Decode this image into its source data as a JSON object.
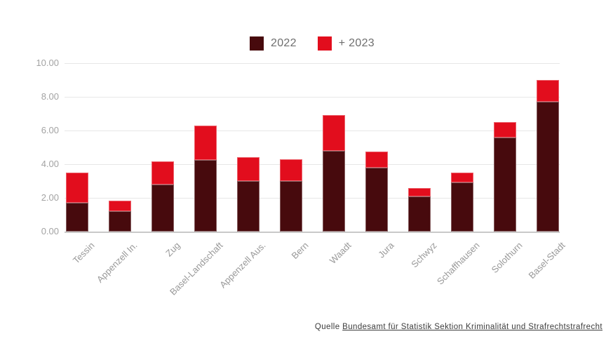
{
  "legend": {
    "series_2022_label": "2022",
    "series_2023_label": "+ 2023"
  },
  "source": {
    "prefix": "Quelle",
    "link_text": "Bundesamt für Statistik Sektion Kriminalität und Strafrechtstrafrecht"
  },
  "colors": {
    "series_2022": "#470a0d",
    "series_2023": "#e20d1d",
    "grid": "#e7e7e7",
    "axis_baseline": "#c9c9c9",
    "tick_text": "#a3a3a3",
    "legend_text": "#6e6e6e",
    "source_text": "#3c3c3c"
  },
  "chart_data": {
    "type": "bar",
    "stacked": true,
    "title": "",
    "xlabel": "",
    "ylabel": "",
    "categories": [
      "Tessin",
      "Appenzell In.",
      "Zug",
      "Basel-Landschaft",
      "Appenzell Aus.",
      "Bern",
      "Waadt",
      "Jura",
      "Schwyz",
      "Schaffhausen",
      "Solothurn",
      "Basel-Stadt"
    ],
    "series": [
      {
        "name": "2022",
        "color_key": "series_2022",
        "values": [
          1.7,
          1.2,
          2.8,
          4.25,
          3.0,
          3.0,
          4.8,
          3.8,
          2.1,
          2.9,
          5.6,
          7.7
        ]
      },
      {
        "name": "+ 2023",
        "color_key": "series_2023",
        "values": [
          1.8,
          0.65,
          1.35,
          2.05,
          1.4,
          1.3,
          2.1,
          0.95,
          0.5,
          0.6,
          0.9,
          1.3
        ]
      }
    ],
    "stack_totals": [
      3.5,
      1.85,
      4.15,
      6.3,
      4.4,
      4.3,
      6.9,
      4.75,
      2.6,
      3.5,
      6.5,
      9.0
    ],
    "ylim": [
      0,
      10
    ],
    "yticks": [
      0,
      2,
      4,
      6,
      8,
      10
    ],
    "ytick_labels": [
      "0.00",
      "2.00",
      "4.00",
      "6.00",
      "8.00",
      "10.00"
    ],
    "grid": true,
    "legend_position": "top-center",
    "xtick_rotation_deg": -45
  }
}
